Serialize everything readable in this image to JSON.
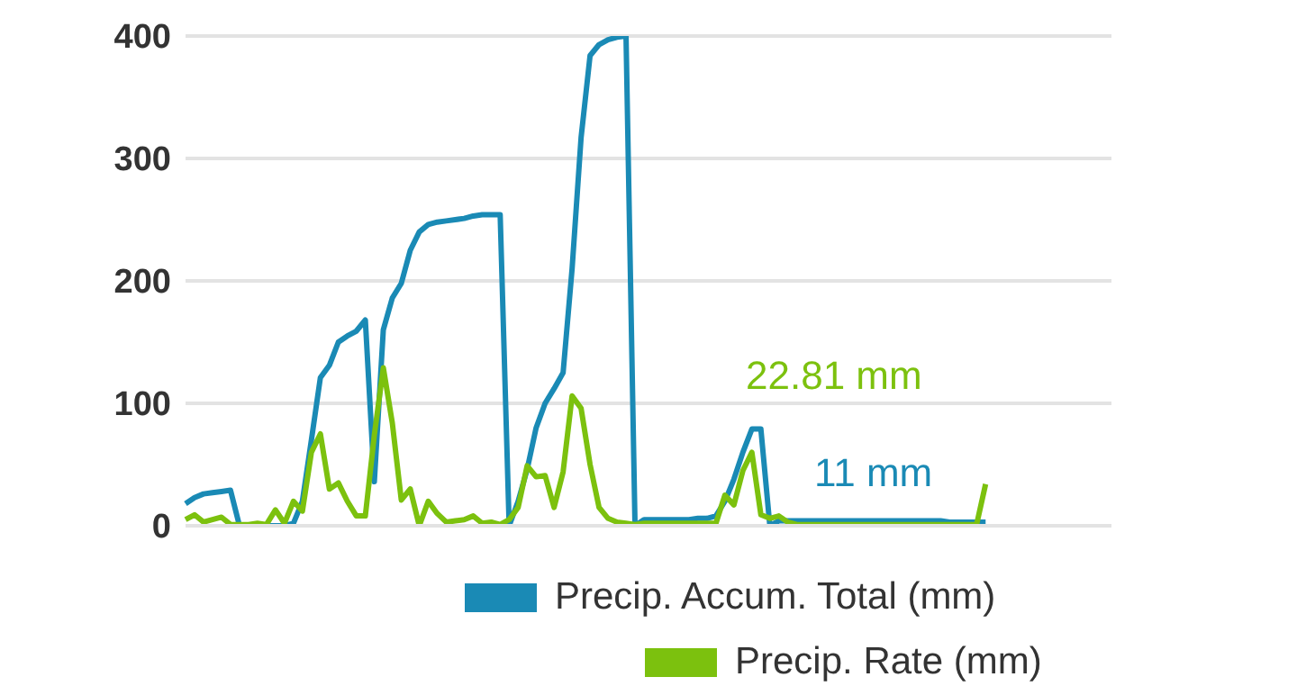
{
  "chart_data": {
    "type": "line",
    "categories": [
      null,
      null,
      null,
      null,
      null,
      null,
      null,
      null,
      null,
      null,
      null,
      null,
      null,
      null,
      null,
      null,
      null,
      null,
      null,
      null,
      null,
      null,
      null,
      null,
      null,
      null,
      null,
      null,
      null,
      null,
      null,
      null,
      null,
      null,
      null,
      null,
      null,
      null,
      null,
      null,
      null,
      null,
      null,
      null,
      null,
      null,
      null,
      null,
      null,
      null,
      null,
      null,
      null,
      null,
      null,
      null,
      null,
      null,
      null,
      null,
      null,
      null,
      null,
      null,
      null,
      null,
      null,
      null,
      null,
      null,
      null,
      null,
      null,
      null,
      null,
      null,
      null,
      null,
      null,
      null,
      null,
      null,
      null,
      null,
      null,
      null,
      null,
      null,
      null,
      null,
      null,
      null,
      null,
      null,
      null,
      null,
      null,
      null,
      null,
      null,
      null,
      null,
      null,
      null
    ],
    "series": [
      {
        "name": "Precip. Accum. Total (mm)",
        "color": "#1a8ab5",
        "values": [
          18,
          23,
          26,
          27,
          28,
          29,
          0,
          0,
          0,
          0,
          0,
          0,
          2,
          20,
          70,
          121,
          131,
          150,
          155,
          159,
          168,
          36,
          160,
          186,
          198,
          225,
          240,
          246,
          248,
          249,
          250,
          251,
          253,
          254,
          254,
          254,
          0,
          20,
          46,
          80,
          100,
          112,
          125,
          210,
          317,
          384,
          393,
          397,
          399,
          400,
          0,
          5,
          5,
          5,
          5,
          5,
          5,
          6,
          6,
          8,
          20,
          38,
          60,
          79,
          79,
          0,
          4,
          4,
          4,
          4,
          4,
          4,
          4,
          4,
          4,
          4,
          4,
          4,
          4,
          4,
          4,
          4,
          4,
          4,
          4,
          3,
          3,
          3,
          3,
          3,
          null,
          null,
          null,
          null,
          null,
          null,
          null,
          null,
          null,
          null,
          null,
          null,
          null,
          null
        ]
      },
      {
        "name": "Precip. Rate (mm)",
        "color": "#7cc10e",
        "values": [
          5,
          9,
          3,
          5,
          7,
          1,
          1,
          1,
          2,
          1,
          13,
          2,
          20,
          12,
          60,
          75,
          30,
          35,
          20,
          8,
          8,
          74,
          129,
          84,
          21,
          30,
          0,
          20,
          10,
          3,
          4,
          5,
          8,
          2,
          3,
          1,
          5,
          15,
          49,
          40,
          41,
          15,
          44,
          106,
          96,
          50,
          15,
          6,
          3,
          2,
          1,
          2,
          2,
          2,
          2,
          2,
          2,
          2,
          2,
          2,
          25,
          17,
          45,
          60,
          9,
          6,
          8,
          3,
          1,
          1,
          1,
          1,
          1,
          1,
          1,
          1,
          1,
          1,
          1,
          1,
          1,
          1,
          1,
          1,
          1,
          1,
          1,
          1,
          1,
          34,
          null,
          null,
          null,
          null,
          null,
          null,
          null,
          null,
          null,
          null,
          null,
          null,
          null,
          null
        ]
      }
    ],
    "ylim": [
      0,
      400
    ],
    "yticks": [
      0,
      100,
      200,
      300,
      400
    ],
    "grid": "y",
    "legend": "bottom right",
    "marker": "none",
    "line_style": "solid",
    "annotations": [
      "22.81 mm",
      "11 mm"
    ]
  }
}
